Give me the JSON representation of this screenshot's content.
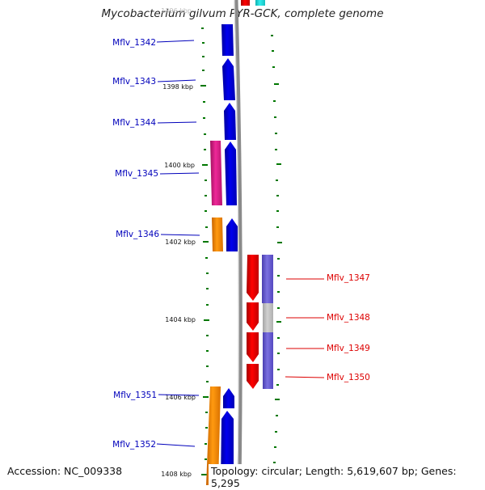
{
  "title": "Mycobacterium gilvum PYR-GCK, complete genome",
  "accession": "Accession: NC_009338",
  "topology": "Topology: circular; Length: 5,619,607 bp; Genes: 5,295",
  "axis": {
    "unit": "kbp",
    "visible_range_bp": [
      1396000,
      1408200
    ],
    "ticks": [
      {
        "label": "1396 kbp",
        "bp": 1396000,
        "faded": true
      },
      {
        "label": "1398 kbp",
        "bp": 1398000
      },
      {
        "label": "1400 kbp",
        "bp": 1400000
      },
      {
        "label": "1402 kbp",
        "bp": 1402000
      },
      {
        "label": "1404 kbp",
        "bp": 1404000
      },
      {
        "label": "1406 kbp",
        "bp": 1406000
      },
      {
        "label": "1408 kbp",
        "bp": 1408000
      }
    ]
  },
  "colors": {
    "backbone": "#8a8a8a",
    "left_label": "#0000bb",
    "right_label": "#dd0000",
    "tick": "#007700",
    "blue": "#0000ee",
    "red": "#ee0000",
    "magenta": "#e0208c",
    "orange": "#ff8c00",
    "purple": "#6b5fd6",
    "gray": "#c4c4c4",
    "cyan": "#22dddd"
  },
  "genes": [
    {
      "name": "Mflv_1342",
      "side": "left",
      "label": true
    },
    {
      "name": "Mflv_1343",
      "side": "left",
      "label": true
    },
    {
      "name": "Mflv_1344",
      "side": "left",
      "label": true
    },
    {
      "name": "Mflv_1345",
      "side": "left",
      "label": true
    },
    {
      "name": "Mflv_1346",
      "side": "left",
      "label": true
    },
    {
      "name": "Mflv_1347",
      "side": "right",
      "label": true
    },
    {
      "name": "Mflv_1348",
      "side": "right",
      "label": true
    },
    {
      "name": "Mflv_1349",
      "side": "right",
      "label": true
    },
    {
      "name": "Mflv_1350",
      "side": "right",
      "label": true
    },
    {
      "name": "Mflv_1351",
      "side": "left",
      "label": true
    },
    {
      "name": "Mflv_1352",
      "side": "left",
      "label": true
    }
  ]
}
